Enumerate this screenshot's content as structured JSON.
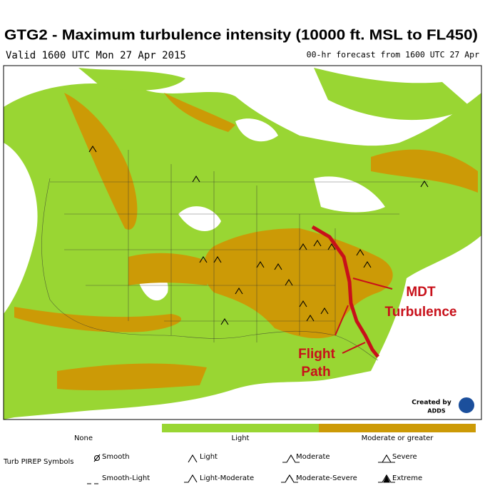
{
  "header": {
    "title": "GTG2 - Maximum turbulence intensity (10000 ft. MSL to FL450)",
    "valid": "Valid 1600 UTC Mon 27 Apr 2015",
    "forecast": "00-hr forecast from 1600 UTC 27 Apr"
  },
  "annotations": [
    {
      "lines": [
        "MDT",
        "Turbulence"
      ]
    },
    {
      "lines": [
        "Flight",
        "Path"
      ]
    }
  ],
  "credit": {
    "line1": "Created by",
    "line2": "ADDS"
  },
  "legend": {
    "items": [
      {
        "label": "None",
        "color": "#ffffff"
      },
      {
        "label": "Light",
        "color": "#99d633"
      },
      {
        "label": "Moderate or greater",
        "color": "#cc9a06"
      }
    ]
  },
  "pirep": {
    "title": "Turb PIREP Symbols",
    "symbols": [
      "Smooth",
      "Light",
      "Moderate",
      "Severe",
      "Smooth-Light",
      "Light-Moderate",
      "Moderate-Severe",
      "Extreme"
    ]
  }
}
